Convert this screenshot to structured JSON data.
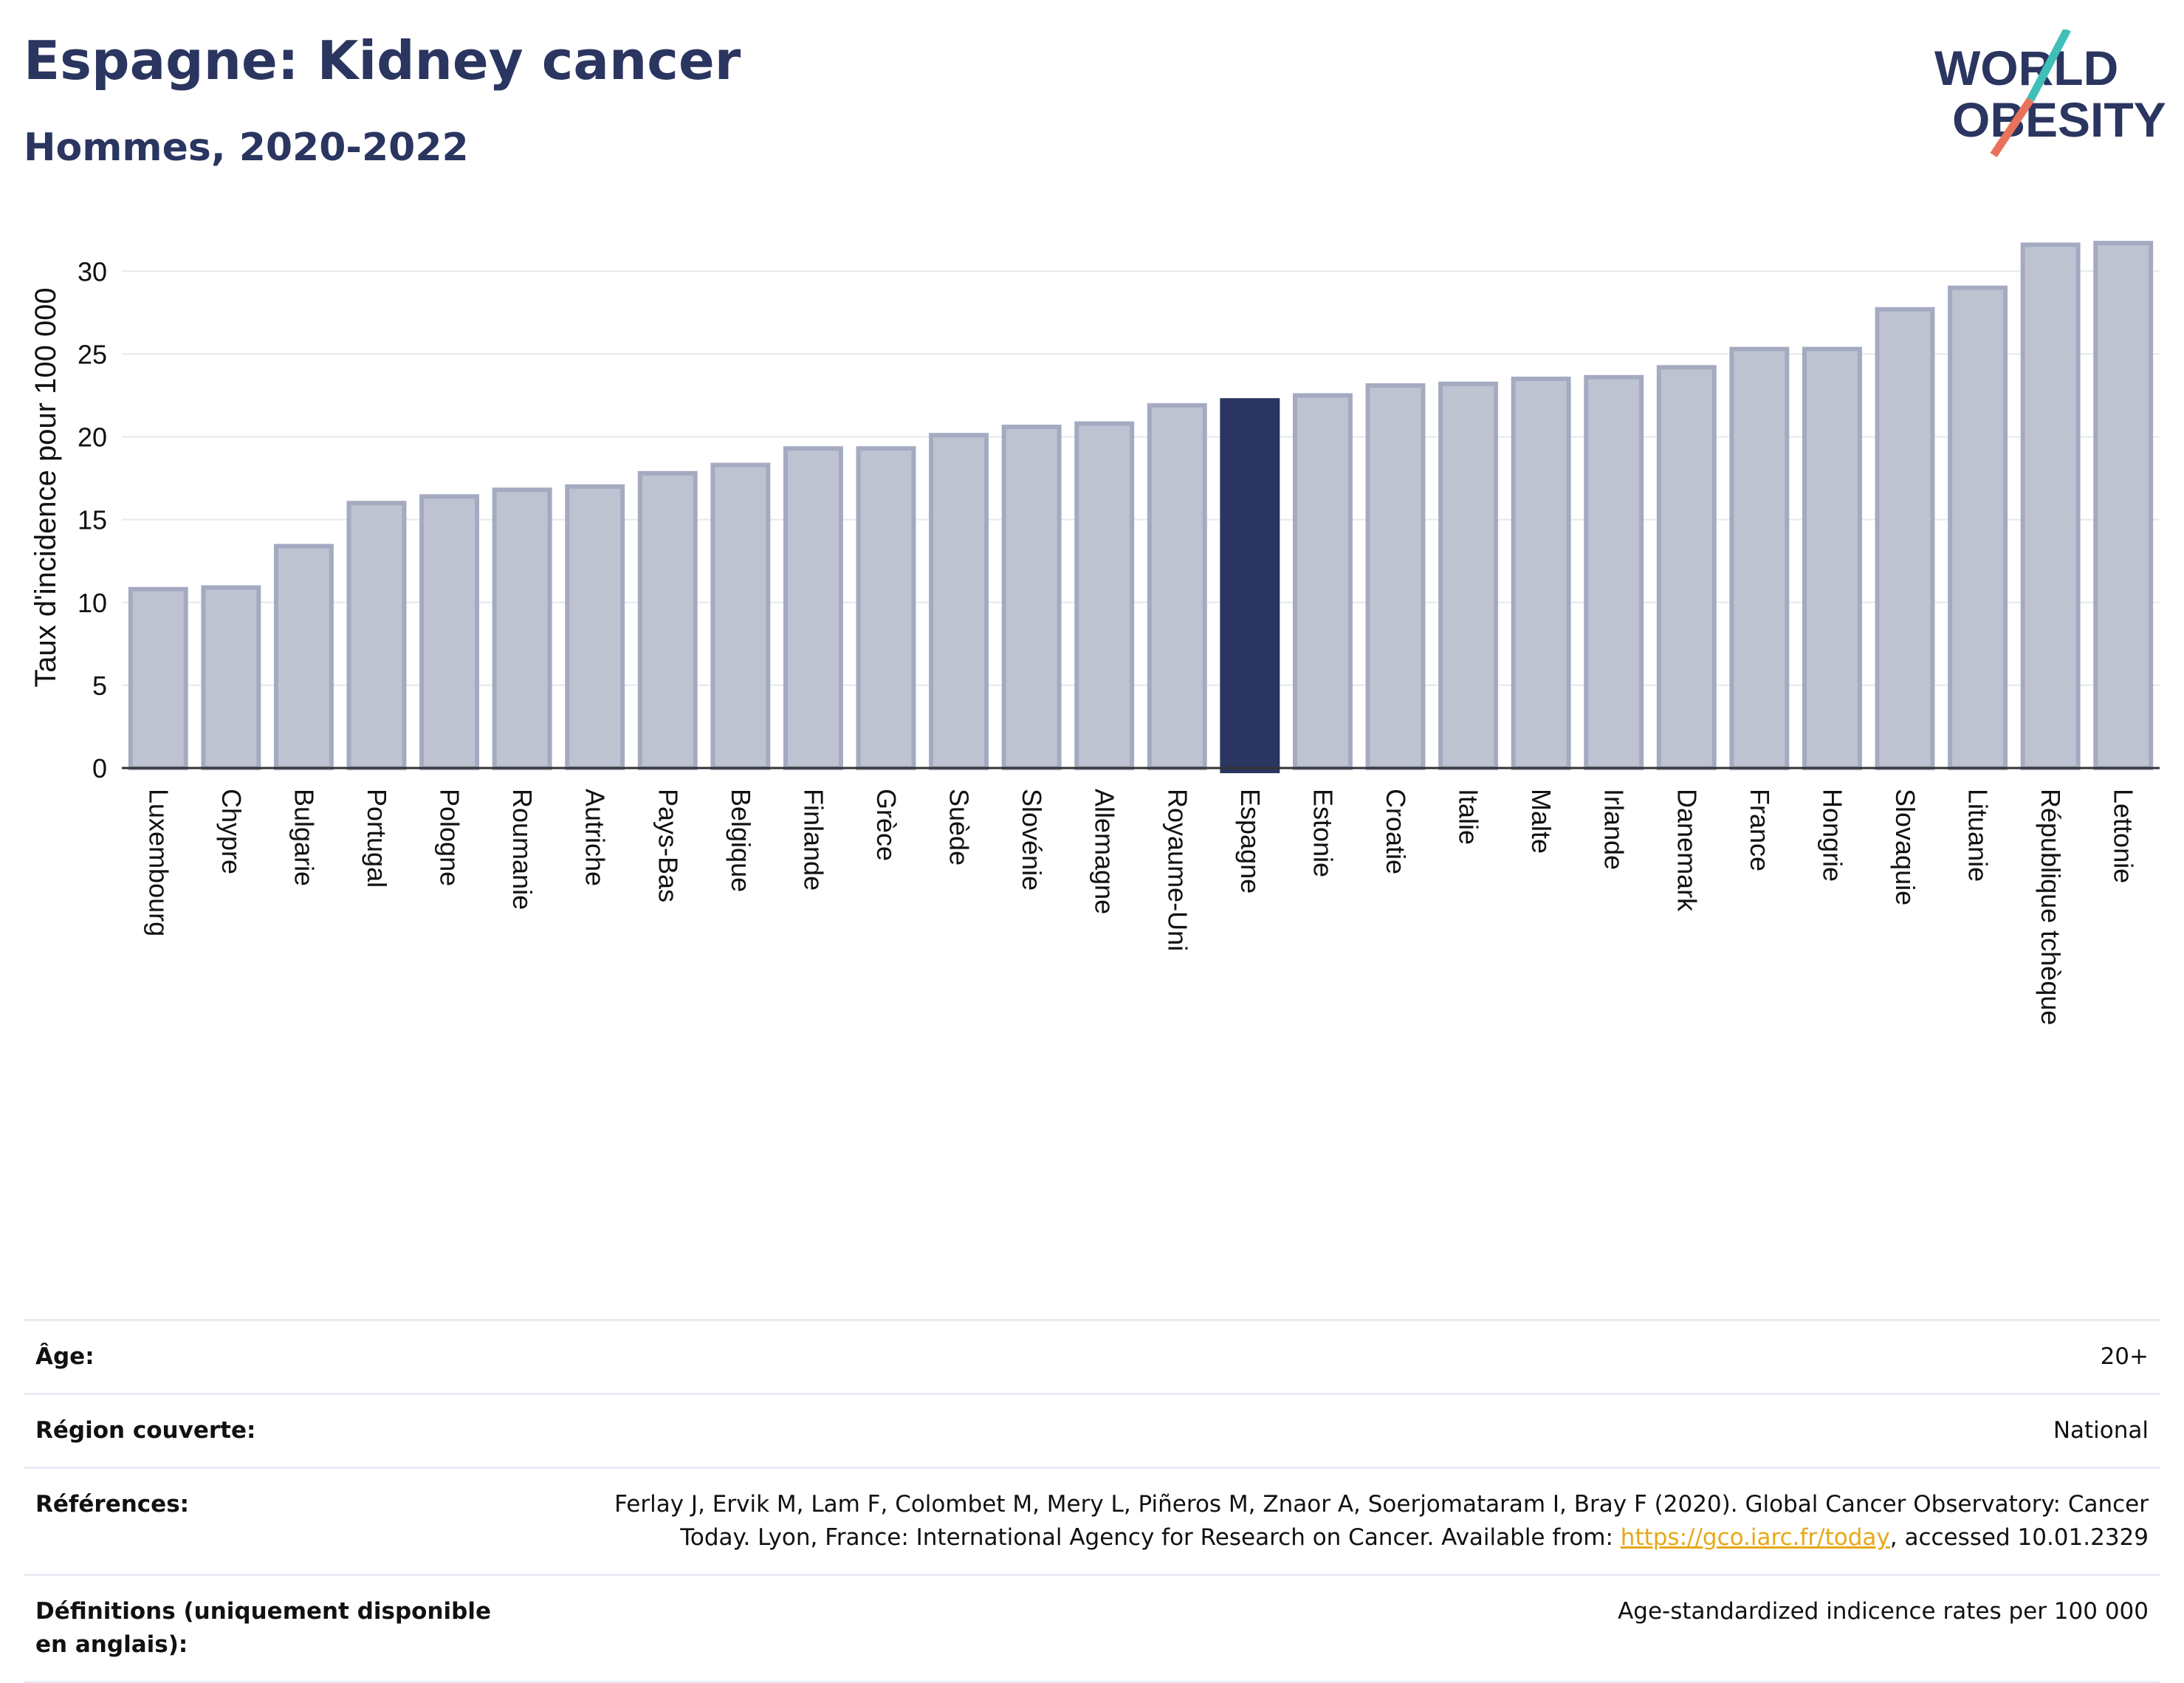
{
  "header": {
    "title": "Espagne: Kidney cancer",
    "subtitle": "Hommes, 2020-2022",
    "logo_line1": "WORLD",
    "logo_line2": "OBESITY"
  },
  "colors": {
    "bar": "#bfc3d1",
    "bar_border": "#a4aac0",
    "highlight": "#2a3560",
    "grid": "#e6e8ee",
    "title": "#2a3560",
    "logo_teal": "#3fbfb8",
    "logo_red": "#e8735a"
  },
  "chart_data": {
    "type": "bar",
    "ylabel": "Taux d'incidence pour 100 000",
    "ylim": [
      0,
      33
    ],
    "yticks": [
      0,
      5,
      10,
      15,
      20,
      25,
      30
    ],
    "grid": true,
    "highlight_category": "Espagne",
    "categories": [
      "Luxembourg",
      "Chypre",
      "Bulgarie",
      "Portugal",
      "Pologne",
      "Roumanie",
      "Autriche",
      "Pays-Bas",
      "Belgique",
      "Finlande",
      "Grèce",
      "Suède",
      "Slovénie",
      "Allemagne",
      "Royaume-Uni",
      "Espagne",
      "Estonie",
      "Croatie",
      "Italie",
      "Malte",
      "Irlande",
      "Danemark",
      "France",
      "Hongrie",
      "Slovaquie",
      "Lituanie",
      "République tchèque",
      "Lettonie"
    ],
    "values": [
      10.8,
      10.9,
      13.4,
      16.0,
      16.4,
      16.8,
      17.0,
      17.8,
      18.3,
      19.3,
      19.3,
      20.1,
      20.6,
      20.8,
      21.9,
      22.2,
      22.5,
      23.1,
      23.2,
      23.5,
      23.6,
      24.2,
      25.3,
      25.3,
      27.7,
      29.0,
      31.6,
      31.7
    ]
  },
  "meta": {
    "rows": [
      {
        "key": "Âge:",
        "value": "20+"
      },
      {
        "key": "Région couverte:",
        "value": "National"
      },
      {
        "key": "Références:",
        "value": "Ferlay J, Ervik M, Lam F, Colombet M, Mery L, Piñeros M, Znaor A, Soerjomataram I, Bray F (2020). Global Cancer Observatory: Cancer Today. Lyon, France: International Agency for Research on Cancer. Available from: ",
        "link": "https://gco.iarc.fr/today",
        "suffix": ", accessed 10.01.2329"
      },
      {
        "key": "Définitions (uniquement disponible en anglais):",
        "value": "Age-standardized indicence rates per 100 000"
      }
    ]
  }
}
